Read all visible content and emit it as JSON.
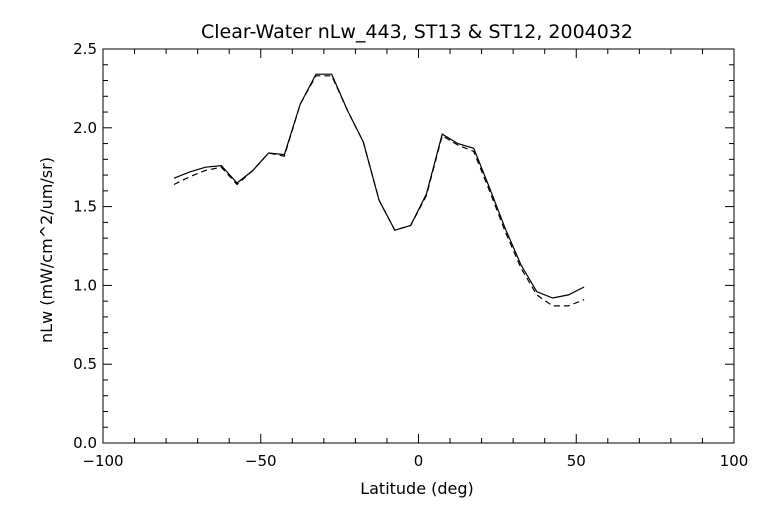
{
  "chart_data": {
    "type": "line",
    "title": "Clear-Water nLw_443, ST13 & ST12, 2004032",
    "xlabel": "Latitude (deg)",
    "ylabel": "nLw (mW/cm^2/um/sr)",
    "xlim": [
      -100,
      100
    ],
    "ylim": [
      0.0,
      2.5
    ],
    "x_ticks": [
      -100,
      -50,
      0,
      50,
      100
    ],
    "y_ticks": [
      0.0,
      0.5,
      1.0,
      1.5,
      2.0,
      2.5
    ],
    "x_tick_labels": [
      "−100",
      "−50",
      "0",
      "50",
      "100"
    ],
    "y_tick_labels": [
      "0.0",
      "0.5",
      "1.0",
      "1.5",
      "2.0",
      "2.5"
    ],
    "x_minor_step": 10,
    "y_minor_step": 0.1,
    "grid": false,
    "series": [
      {
        "style": "solid",
        "x": [
          -77.5,
          -72.5,
          -67.5,
          -62.5,
          -57.5,
          -52.5,
          -47.5,
          -42.5,
          -37.5,
          -32.5,
          -27.5,
          -22.5,
          -17.5,
          -12.5,
          -7.5,
          -2.5,
          2.5,
          7.5,
          12.5,
          17.5,
          22.5,
          27.5,
          32.5,
          37.5,
          42.5,
          47.5,
          52.5
        ],
        "y": [
          1.68,
          1.72,
          1.75,
          1.76,
          1.65,
          1.73,
          1.84,
          1.83,
          2.15,
          2.34,
          2.34,
          2.11,
          1.91,
          1.54,
          1.35,
          1.38,
          1.58,
          1.96,
          1.9,
          1.87,
          1.62,
          1.36,
          1.13,
          0.96,
          0.92,
          0.94,
          0.99
        ]
      },
      {
        "style": "dashed",
        "x": [
          -77.5,
          -72.5,
          -67.5,
          -62.5,
          -57.5,
          -52.5,
          -47.5,
          -42.5,
          -37.5,
          -32.5,
          -27.5,
          -22.5,
          -17.5,
          -12.5,
          -7.5,
          -2.5,
          2.5,
          7.5,
          12.5,
          17.5,
          22.5,
          27.5,
          32.5,
          37.5,
          42.5,
          47.5,
          52.5
        ],
        "y": [
          1.64,
          1.69,
          1.73,
          1.75,
          1.64,
          1.73,
          1.84,
          1.82,
          2.15,
          2.33,
          2.33,
          2.11,
          1.91,
          1.54,
          1.35,
          1.38,
          1.57,
          1.95,
          1.89,
          1.85,
          1.6,
          1.34,
          1.11,
          0.94,
          0.87,
          0.87,
          0.91
        ]
      }
    ]
  }
}
